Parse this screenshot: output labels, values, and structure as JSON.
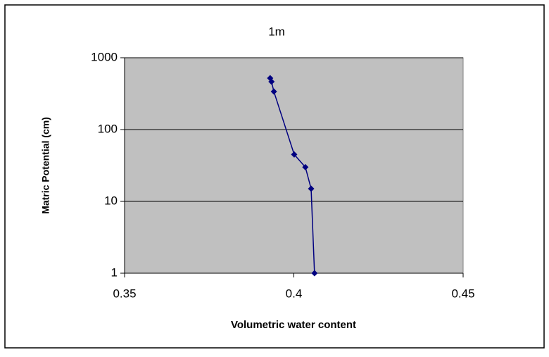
{
  "chart_data": {
    "type": "scatter",
    "title": "1m",
    "x_label": "Volumetric water content",
    "y_label": "Matric Potential (cm)",
    "x": [
      0.393,
      0.3934,
      0.3941,
      0.4001,
      0.4034,
      0.4051,
      0.4061
    ],
    "values": [
      520,
      464,
      338,
      45,
      30,
      15,
      1
    ],
    "color": "#000080",
    "line": true,
    "xlim": [
      0.35,
      0.45
    ],
    "xticks": [
      0.35,
      0.4,
      0.45
    ],
    "ylim": [
      1,
      1000
    ],
    "yticks": [
      1,
      10,
      100,
      1000
    ],
    "y_scale": "log",
    "grid": true,
    "plot_background": "#c0c0c0"
  }
}
